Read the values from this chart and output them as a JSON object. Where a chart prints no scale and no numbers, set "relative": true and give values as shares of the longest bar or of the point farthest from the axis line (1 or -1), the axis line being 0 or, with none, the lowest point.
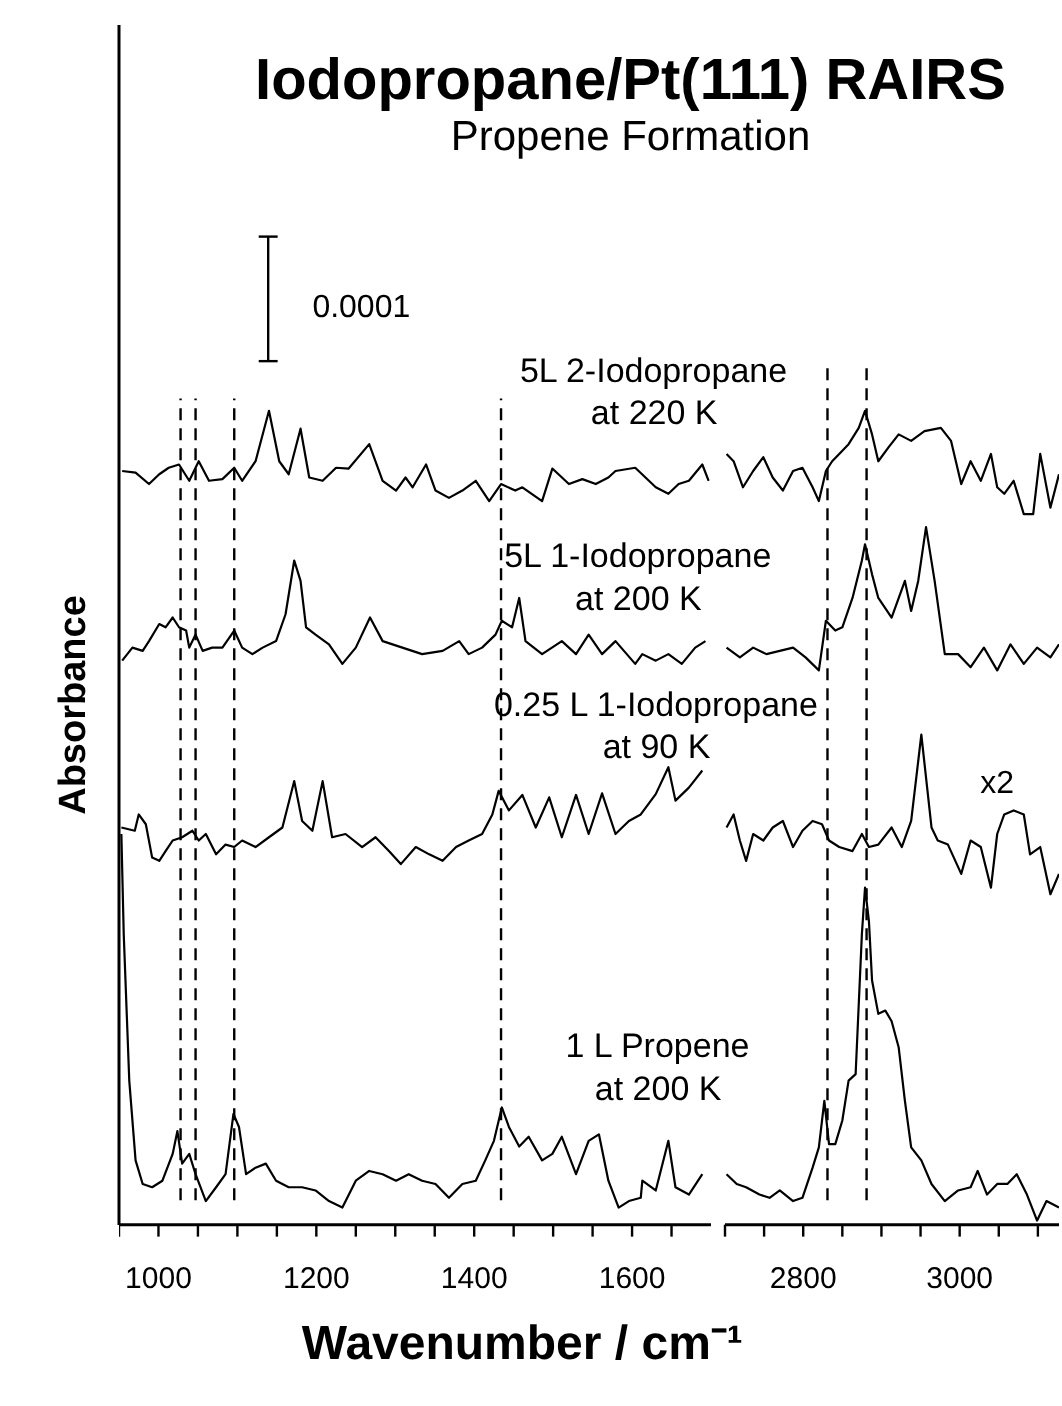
{
  "chart_data": [
    {
      "type": "line",
      "title": "Iodopropane/Pt(111) RAIRS",
      "subtitle": "Propene Formation",
      "xlabel": "Wavenumber / cm⁻¹",
      "ylabel": "Absorbance",
      "relative": true,
      "tick_labels": "x",
      "xlim": [
        950,
        1700
      ],
      "xticks": [
        {
          "value": 950,
          "label": null
        },
        1000,
        {
          "value": 1050,
          "label": null
        },
        {
          "value": 1100,
          "label": null
        },
        {
          "value": 1150,
          "label": null
        },
        1200,
        {
          "value": 1250,
          "label": null
        },
        {
          "value": 1300,
          "label": null
        },
        {
          "value": 1350,
          "label": null
        },
        1400,
        {
          "value": 1450,
          "label": null
        },
        {
          "value": 1500,
          "label": null
        },
        {
          "value": 1550,
          "label": null
        },
        1600,
        {
          "value": 1650,
          "label": null
        }
      ],
      "series": [
        {
          "name": "5L 2-Iodopropane\nat 220 K",
          "color": "#000000",
          "x": [
            954,
            971,
            988,
            1001,
            1013,
            1026,
            1039,
            1051,
            1064,
            1081,
            1096,
            1106,
            1123,
            1140,
            1153,
            1165,
            1180,
            1191,
            1208,
            1225,
            1241,
            1267,
            1284,
            1301,
            1313,
            1322,
            1339,
            1351,
            1368,
            1385,
            1402,
            1419,
            1434,
            1452,
            1461,
            1486,
            1499,
            1520,
            1537,
            1554,
            1570,
            1579,
            1604,
            1630,
            1646,
            1659,
            1672,
            1689,
            1697
          ],
          "values": [
            0.926,
            0.924,
            0.91,
            0.922,
            0.93,
            0.934,
            0.914,
            0.938,
            0.914,
            0.916,
            0.93,
            0.914,
            0.938,
            1.0,
            0.938,
            0.922,
            0.978,
            0.918,
            0.914,
            0.93,
            0.929,
            0.959,
            0.914,
            0.902,
            0.918,
            0.906,
            0.934,
            0.902,
            0.893,
            0.902,
            0.914,
            0.889,
            0.91,
            0.902,
            0.906,
            0.889,
            0.929,
            0.91,
            0.916,
            0.91,
            0.918,
            0.926,
            0.93,
            0.906,
            0.898,
            0.91,
            0.914,
            0.934,
            0.914
          ]
        },
        {
          "name": "5L 1-Iodopropane\nat 200 K",
          "color": "#000000",
          "x": [
            954,
            967,
            980,
            988,
            1001,
            1009,
            1018,
            1026,
            1035,
            1039,
            1047,
            1056,
            1068,
            1081,
            1096,
            1106,
            1119,
            1132,
            1149,
            1161,
            1172,
            1180,
            1187,
            1199,
            1216,
            1233,
            1250,
            1268,
            1284,
            1309,
            1334,
            1360,
            1381,
            1393,
            1410,
            1427,
            1435,
            1448,
            1457,
            1465,
            1486,
            1511,
            1529,
            1545,
            1562,
            1579,
            1604,
            1613,
            1630,
            1646,
            1663,
            1680,
            1693
          ],
          "values": [
            0.693,
            0.709,
            0.705,
            0.717,
            0.738,
            0.734,
            0.746,
            0.734,
            0.73,
            0.709,
            0.725,
            0.705,
            0.709,
            0.709,
            0.73,
            0.709,
            0.701,
            0.709,
            0.717,
            0.75,
            0.816,
            0.791,
            0.734,
            0.725,
            0.713,
            0.689,
            0.709,
            0.746,
            0.717,
            0.709,
            0.701,
            0.705,
            0.717,
            0.701,
            0.709,
            0.725,
            0.742,
            0.734,
            0.77,
            0.717,
            0.701,
            0.717,
            0.701,
            0.725,
            0.701,
            0.717,
            0.689,
            0.701,
            0.693,
            0.701,
            0.689,
            0.709,
            0.717
          ]
        },
        {
          "name": "0.25 L 1-Iodopropane\nat 90 K",
          "color": "#000000",
          "x": [
            953,
            970,
            975,
            984,
            992,
            1001,
            1009,
            1018,
            1030,
            1043,
            1051,
            1060,
            1073,
            1085,
            1096,
            1106,
            1123,
            1140,
            1157,
            1172,
            1182,
            1195,
            1208,
            1220,
            1237,
            1258,
            1275,
            1292,
            1307,
            1326,
            1343,
            1360,
            1377,
            1393,
            1410,
            1423,
            1431,
            1444,
            1461,
            1478,
            1495,
            1511,
            1529,
            1545,
            1562,
            1579,
            1596,
            1611,
            1630,
            1646,
            1655,
            1672,
            1689
          ],
          "values": [
            0.488,
            0.484,
            0.504,
            0.492,
            0.451,
            0.447,
            0.459,
            0.472,
            0.476,
            0.484,
            0.472,
            0.48,
            0.455,
            0.467,
            0.464,
            0.472,
            0.464,
            0.476,
            0.488,
            0.545,
            0.496,
            0.484,
            0.545,
            0.476,
            0.48,
            0.464,
            0.476,
            0.459,
            0.443,
            0.464,
            0.455,
            0.447,
            0.464,
            0.472,
            0.48,
            0.504,
            0.533,
            0.509,
            0.528,
            0.488,
            0.525,
            0.476,
            0.528,
            0.48,
            0.53,
            0.48,
            0.496,
            0.504,
            0.529,
            0.562,
            0.521,
            0.537,
            0.558
          ]
        },
        {
          "name": "1 L Propene\nat 200 K",
          "color": "#000000",
          "x": [
            953,
            956,
            963,
            971,
            980,
            992,
            1005,
            1018,
            1024,
            1030,
            1039,
            1047,
            1060,
            1073,
            1085,
            1095,
            1102,
            1111,
            1123,
            1136,
            1149,
            1165,
            1182,
            1199,
            1216,
            1233,
            1250,
            1267,
            1284,
            1301,
            1317,
            1334,
            1351,
            1368,
            1385,
            1402,
            1414,
            1425,
            1435,
            1444,
            1457,
            1469,
            1486,
            1499,
            1511,
            1529,
            1545,
            1558,
            1570,
            1583,
            1596,
            1611,
            1613,
            1630,
            1646,
            1655,
            1672,
            1689
          ],
          "values": [
            0.48,
            0.357,
            0.177,
            0.079,
            0.05,
            0.046,
            0.054,
            0.087,
            0.115,
            0.075,
            0.087,
            0.062,
            0.029,
            0.046,
            0.062,
            0.136,
            0.12,
            0.062,
            0.07,
            0.075,
            0.054,
            0.046,
            0.046,
            0.042,
            0.029,
            0.021,
            0.054,
            0.066,
            0.062,
            0.054,
            0.062,
            0.054,
            0.05,
            0.033,
            0.05,
            0.054,
            0.079,
            0.103,
            0.144,
            0.12,
            0.096,
            0.108,
            0.079,
            0.087,
            0.108,
            0.062,
            0.103,
            0.111,
            0.054,
            0.021,
            0.029,
            0.033,
            0.054,
            0.042,
            0.103,
            0.046,
            0.037,
            0.062
          ]
        }
      ],
      "ref_lines": [
        {
          "axis": "x",
          "value": 1028,
          "color": "#000000",
          "line_style": "dashed"
        },
        {
          "axis": "x",
          "value": 1047,
          "color": "#000000",
          "line_style": "dashed"
        },
        {
          "axis": "x",
          "value": 1096,
          "color": "#000000",
          "line_style": "dashed"
        },
        {
          "axis": "x",
          "value": 1434,
          "color": "#000000",
          "line_style": "dashed"
        }
      ],
      "annotations": [
        "0.0001"
      ]
    },
    {
      "type": "line",
      "relative": true,
      "tick_labels": "x",
      "xlim": [
        2700,
        3127
      ],
      "xticks": [
        {
          "value": 2700,
          "label": null
        },
        {
          "value": 2750,
          "label": null
        },
        2800,
        {
          "value": 2850,
          "label": null
        },
        {
          "value": 2900,
          "label": null
        },
        {
          "value": 2950,
          "label": null
        },
        3000,
        {
          "value": 3050,
          "label": null
        },
        {
          "value": 3100,
          "label": null
        }
      ],
      "series": [
        {
          "color": "#000000",
          "x": [
            2702,
            2711,
            2723,
            2736,
            2749,
            2761,
            2774,
            2787,
            2799,
            2812,
            2820,
            2829,
            2837,
            2846,
            2858,
            2871,
            2879,
            2888,
            2896,
            2909,
            2922,
            2938,
            2955,
            2976,
            2989,
            3002,
            3014,
            3027,
            3040,
            3048,
            3057,
            3069,
            3082,
            3094,
            3103,
            3116,
            3127
          ],
          "values": [
            0.947,
            0.938,
            0.906,
            0.926,
            0.943,
            0.918,
            0.902,
            0.926,
            0.93,
            0.906,
            0.889,
            0.926,
            0.938,
            0.947,
            0.959,
            0.979,
            1.0,
            0.971,
            0.938,
            0.955,
            0.971,
            0.963,
            0.975,
            0.979,
            0.963,
            0.91,
            0.938,
            0.914,
            0.947,
            0.906,
            0.898,
            0.914,
            0.873,
            0.873,
            0.947,
            0.881,
            0.922
          ]
        },
        {
          "color": "#000000",
          "x": [
            2702,
            2719,
            2736,
            2753,
            2770,
            2787,
            2803,
            2820,
            2829,
            2841,
            2850,
            2863,
            2875,
            2879,
            2888,
            2896,
            2913,
            2930,
            2938,
            2947,
            2957,
            2968,
            2981,
            2998,
            3014,
            3031,
            3048,
            3065,
            3082,
            3099,
            3116,
            3127
          ],
          "values": [
            0.709,
            0.697,
            0.709,
            0.701,
            0.705,
            0.709,
            0.697,
            0.681,
            0.742,
            0.73,
            0.734,
            0.77,
            0.816,
            0.836,
            0.799,
            0.77,
            0.746,
            0.791,
            0.754,
            0.791,
            0.857,
            0.791,
            0.701,
            0.701,
            0.685,
            0.709,
            0.681,
            0.713,
            0.689,
            0.709,
            0.697,
            0.713
          ]
        },
        {
          "color": "#000000",
          "x": [
            2702,
            2711,
            2719,
            2727,
            2736,
            2749,
            2761,
            2774,
            2787,
            2799,
            2812,
            2824,
            2833,
            2846,
            2863,
            2875,
            2884,
            2896,
            2913,
            2926,
            2938,
            2951,
            2964,
            2972,
            2985,
            3002,
            3014,
            3027,
            3040,
            3048,
            3057,
            3069,
            3082,
            3090,
            3103,
            3116,
            3127
          ],
          "values": [
            0.488,
            0.504,
            0.472,
            0.447,
            0.48,
            0.472,
            0.488,
            0.496,
            0.464,
            0.484,
            0.496,
            0.492,
            0.472,
            0.464,
            0.459,
            0.48,
            0.464,
            0.467,
            0.488,
            0.464,
            0.496,
            0.602,
            0.488,
            0.472,
            0.467,
            0.431,
            0.472,
            0.464,
            0.414,
            0.48,
            0.504,
            0.509,
            0.504,
            0.455,
            0.464,
            0.406,
            0.431
          ]
        },
        {
          "color": "#000000",
          "x": [
            2702,
            2715,
            2727,
            2744,
            2757,
            2770,
            2787,
            2799,
            2812,
            2820,
            2827,
            2833,
            2841,
            2850,
            2858,
            2867,
            2875,
            2879,
            2884,
            2888,
            2896,
            2905,
            2913,
            2922,
            2930,
            2938,
            2951,
            2964,
            2981,
            2998,
            3014,
            3023,
            3035,
            3048,
            3061,
            3073,
            3086,
            3099,
            3111,
            3127
          ],
          "values": [
            0.062,
            0.05,
            0.046,
            0.037,
            0.033,
            0.042,
            0.029,
            0.033,
            0.07,
            0.095,
            0.152,
            0.099,
            0.099,
            0.128,
            0.177,
            0.185,
            0.357,
            0.414,
            0.373,
            0.3,
            0.259,
            0.263,
            0.25,
            0.218,
            0.152,
            0.095,
            0.079,
            0.05,
            0.029,
            0.042,
            0.046,
            0.066,
            0.037,
            0.05,
            0.05,
            0.062,
            0.037,
            0.005,
            0.029,
            0.021
          ]
        }
      ],
      "ref_lines": [
        {
          "axis": "x",
          "value": 2831,
          "color": "#000000",
          "line_style": "dashed"
        },
        {
          "axis": "x",
          "value": 2881,
          "color": "#000000",
          "line_style": "dashed"
        }
      ],
      "annotations": [
        "x2"
      ]
    }
  ]
}
